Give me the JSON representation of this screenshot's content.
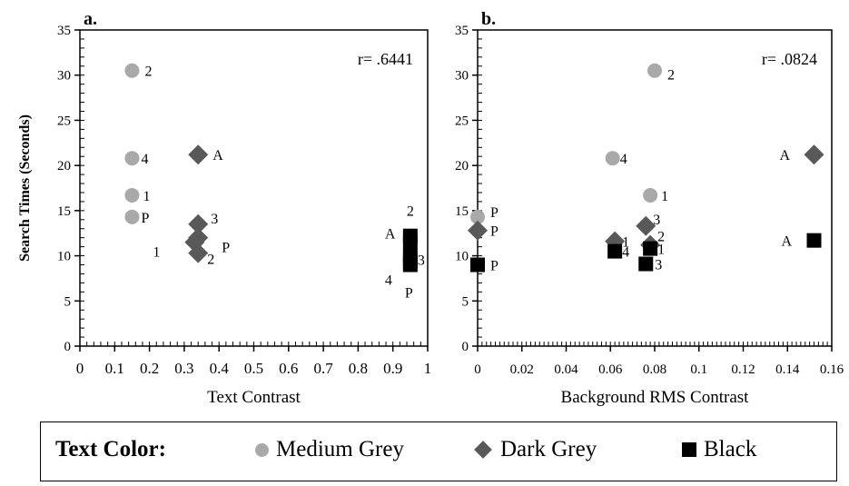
{
  "colors": {
    "medium_grey": "#a9a9a9",
    "dark_grey": "#595959",
    "black": "#000000"
  },
  "chart_data": [
    {
      "type": "scatter",
      "panel_label": "a.",
      "annotation": "r= .6441",
      "xlabel": "Text Contrast",
      "ylabel": "Search Times (Seconds)",
      "xlim": [
        0,
        1
      ],
      "ylim": [
        0,
        35
      ],
      "xticks": [
        "0",
        "0.1",
        "0.2",
        "0.3",
        "0.4",
        "0.5",
        "0.6",
        "0.7",
        "0.8",
        "0.9",
        "1"
      ],
      "yticks": [
        "0",
        "5",
        "10",
        "15",
        "20",
        "25",
        "30",
        "35"
      ],
      "series": [
        {
          "name": "Medium Grey",
          "marker": "circle",
          "points": [
            {
              "x": 0.15,
              "y": 30.5,
              "label": "2"
            },
            {
              "x": 0.15,
              "y": 20.8,
              "label": "4"
            },
            {
              "x": 0.15,
              "y": 16.7,
              "label": "1"
            },
            {
              "x": 0.15,
              "y": 14.3,
              "label": "P"
            }
          ]
        },
        {
          "name": "Dark Grey",
          "marker": "diamond",
          "points": [
            {
              "x": 0.34,
              "y": 21.2,
              "label": "A"
            },
            {
              "x": 0.34,
              "y": 13.5,
              "label": "3"
            },
            {
              "x": 0.34,
              "y": 12.0,
              "label": "P"
            },
            {
              "x": 0.33,
              "y": 11.5,
              "label": "1"
            },
            {
              "x": 0.34,
              "y": 10.3,
              "label": "2"
            }
          ]
        },
        {
          "name": "Black",
          "marker": "square",
          "points": [
            {
              "x": 0.95,
              "y": 12.2,
              "label": "2"
            },
            {
              "x": 0.95,
              "y": 11.5,
              "label": "A"
            },
            {
              "x": 0.95,
              "y": 10.0,
              "label": "3"
            },
            {
              "x": 0.95,
              "y": 9.4,
              "label": "4"
            },
            {
              "x": 0.95,
              "y": 9.0,
              "label": "P"
            }
          ]
        }
      ]
    },
    {
      "type": "scatter",
      "panel_label": "b.",
      "annotation": "r= .0824",
      "xlabel": "Background RMS Contrast",
      "ylabel": "",
      "xlim": [
        0,
        0.16
      ],
      "ylim": [
        0,
        35
      ],
      "xticks": [
        "0",
        "0.02",
        "0.04",
        "0.06",
        "0.08",
        "0.1",
        "0.12",
        "0.14",
        "0.16"
      ],
      "yticks": [
        "0",
        "5",
        "10",
        "15",
        "20",
        "25",
        "30",
        "35"
      ],
      "series": [
        {
          "name": "Medium Grey",
          "marker": "circle",
          "points": [
            {
              "x": 0.08,
              "y": 30.5,
              "label": "2"
            },
            {
              "x": 0.061,
              "y": 20.8,
              "label": "4"
            },
            {
              "x": 0.078,
              "y": 16.7,
              "label": "1"
            },
            {
              "x": 0.0,
              "y": 14.3,
              "label": "P"
            }
          ]
        },
        {
          "name": "Dark Grey",
          "marker": "diamond",
          "points": [
            {
              "x": 0.152,
              "y": 21.2,
              "label": "A"
            },
            {
              "x": 0.0,
              "y": 12.8,
              "label": "P"
            },
            {
              "x": 0.076,
              "y": 13.3,
              "label": "3"
            },
            {
              "x": 0.062,
              "y": 11.6,
              "label": "1"
            },
            {
              "x": 0.078,
              "y": 11.2,
              "label": "2"
            }
          ]
        },
        {
          "name": "Black",
          "marker": "square",
          "points": [
            {
              "x": 0.152,
              "y": 11.7,
              "label": "A"
            },
            {
              "x": 0.0,
              "y": 9.0,
              "label": "P"
            },
            {
              "x": 0.062,
              "y": 10.5,
              "label": "4"
            },
            {
              "x": 0.078,
              "y": 10.8,
              "label": "1"
            },
            {
              "x": 0.076,
              "y": 9.1,
              "label": "3"
            }
          ]
        }
      ]
    }
  ],
  "legend": {
    "title": "Text Color:",
    "items": [
      {
        "label": "Medium Grey",
        "marker": "circle"
      },
      {
        "label": "Dark Grey",
        "marker": "diamond"
      },
      {
        "label": "Black",
        "marker": "square"
      }
    ]
  }
}
